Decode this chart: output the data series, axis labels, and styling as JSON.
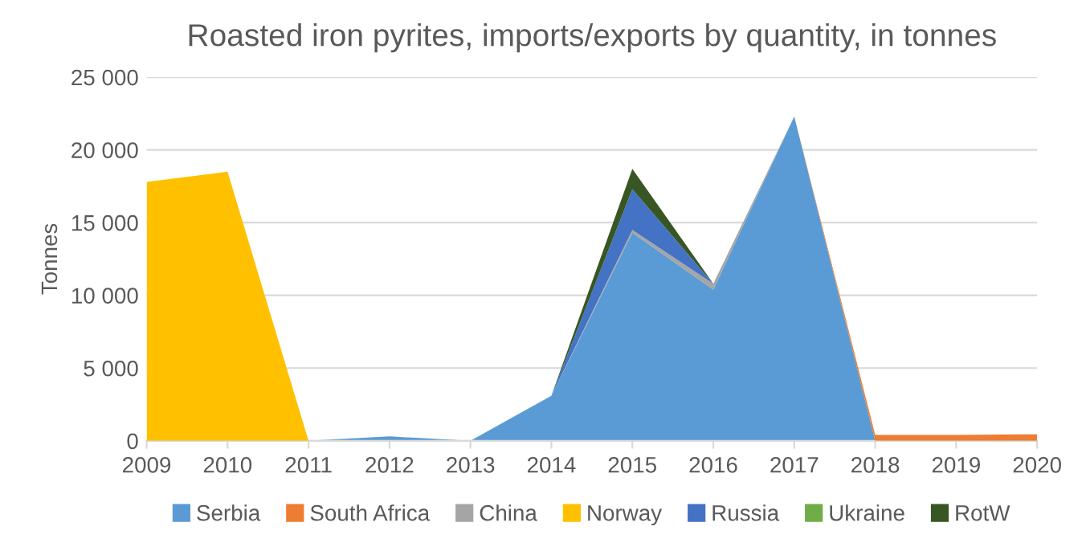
{
  "chart_data": {
    "type": "area",
    "stacked": true,
    "title": "Roasted iron pyrites, imports/exports by quantity, in tonnes",
    "ylabel": "Tonnes",
    "categories": [
      "2009",
      "2010",
      "2011",
      "2012",
      "2013",
      "2014",
      "2015",
      "2016",
      "2017",
      "2018",
      "2019",
      "2020"
    ],
    "series": [
      {
        "name": "Serbia",
        "color": "#5b9bd5",
        "values": [
          null,
          null,
          0,
          300,
          0,
          3100,
          14300,
          10400,
          22300,
          0,
          null,
          null
        ]
      },
      {
        "name": "South Africa",
        "color": "#ed7d31",
        "values": [
          null,
          null,
          null,
          null,
          null,
          null,
          null,
          null,
          0,
          400,
          400,
          450
        ]
      },
      {
        "name": "China",
        "color": "#a5a5a5",
        "values": [
          null,
          null,
          null,
          null,
          null,
          0,
          200,
          400,
          0,
          null,
          null,
          null
        ]
      },
      {
        "name": "Norway",
        "color": "#ffc000",
        "values": [
          17800,
          18500,
          0,
          null,
          null,
          null,
          null,
          null,
          null,
          null,
          null,
          null
        ]
      },
      {
        "name": "Russia",
        "color": "#4472c4",
        "values": [
          null,
          null,
          null,
          null,
          null,
          0,
          2800,
          0,
          null,
          null,
          null,
          null
        ]
      },
      {
        "name": "Ukraine",
        "color": "#70ad47",
        "values": [
          null,
          null,
          null,
          null,
          null,
          null,
          null,
          null,
          null,
          null,
          null,
          null
        ]
      },
      {
        "name": "RotW",
        "color": "#375623",
        "values": [
          null,
          null,
          null,
          null,
          null,
          0,
          1400,
          0,
          null,
          null,
          null,
          null
        ]
      }
    ],
    "ylim": [
      0,
      25000
    ],
    "yticks": [
      0,
      {
        "value": 5000,
        "label": "5 000"
      },
      {
        "value": 10000,
        "label": "10 000"
      },
      {
        "value": 15000,
        "label": "15 000"
      },
      {
        "value": 20000,
        "label": "20 000"
      },
      {
        "value": 25000,
        "label": "25 000"
      }
    ],
    "grid": "y",
    "legend": "bottom"
  }
}
